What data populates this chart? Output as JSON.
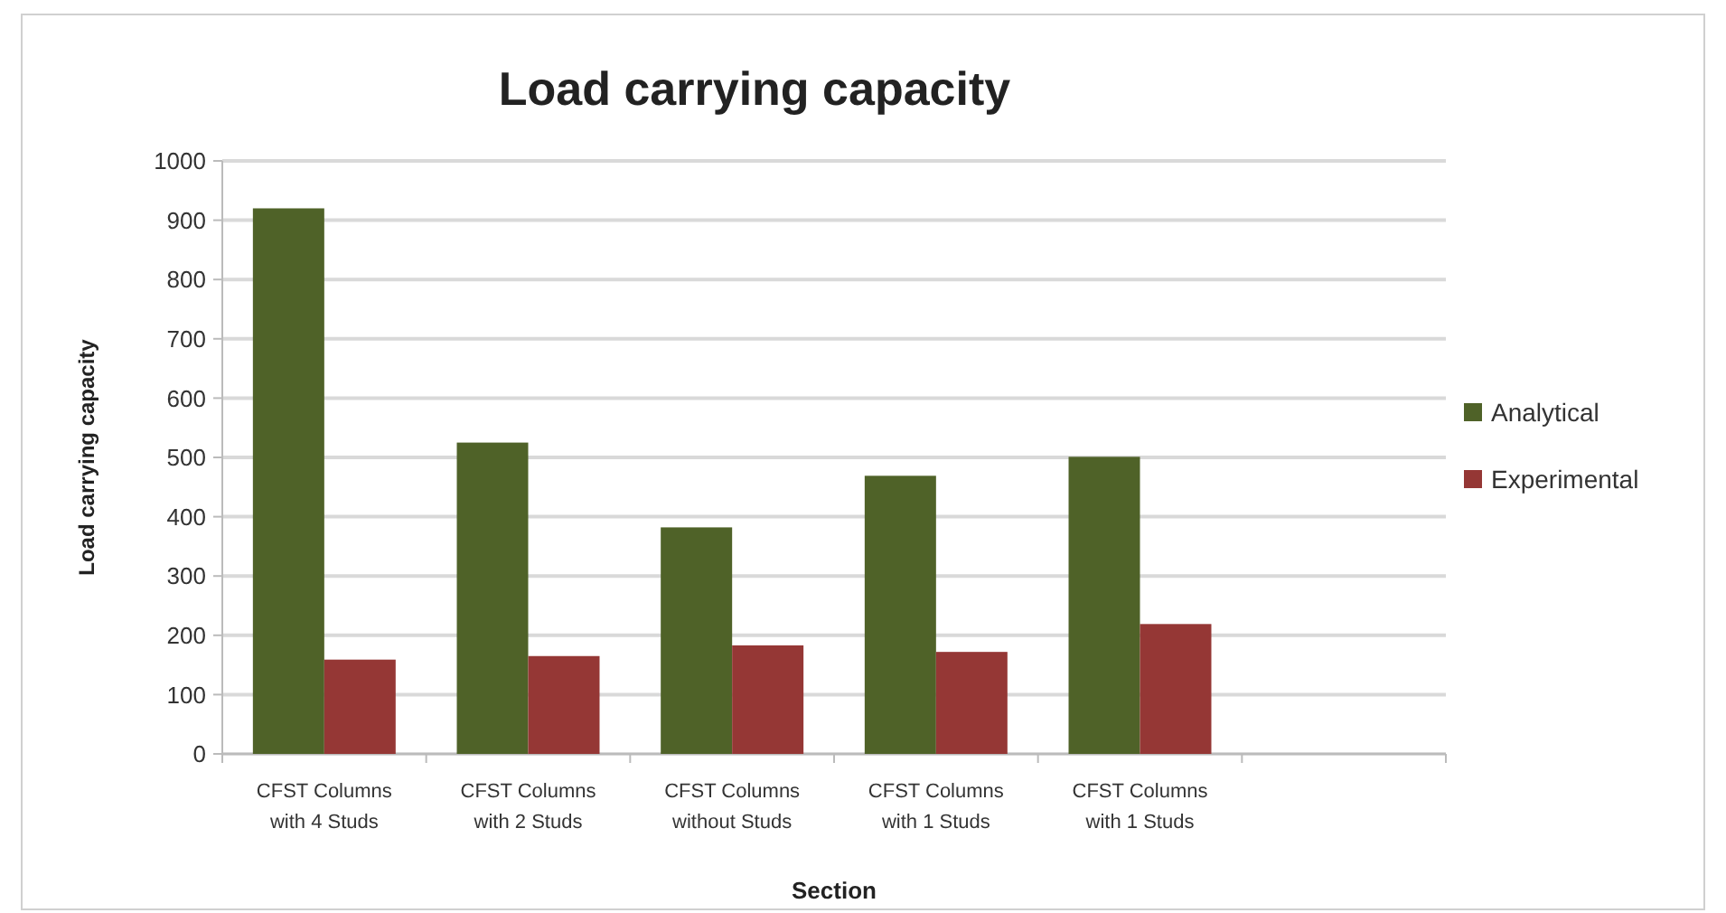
{
  "chart_data": {
    "type": "bar",
    "title": "Load carrying capacity",
    "xlabel": "Section",
    "ylabel": "Load carrying capacity",
    "categories": [
      "CFST Columns with 4 Studs",
      "CFST Columns with 2 Studs",
      "CFST Columns without Studs",
      "CFST Columns with 1 Studs",
      "CFST Columns with 1 Studs",
      null
    ],
    "series": [
      {
        "name": "Analytical",
        "color": "#4f6228",
        "values": [
          920,
          525,
          382,
          469,
          501,
          null
        ]
      },
      {
        "name": "Experimental",
        "color": "#953735",
        "values": [
          159,
          165,
          183,
          172,
          219,
          null
        ]
      }
    ],
    "ylim": [
      0,
      1000
    ],
    "yticks": [
      0,
      100,
      200,
      300,
      400,
      500,
      600,
      700,
      800,
      900,
      1000
    ],
    "grid": "y",
    "legend": "right"
  }
}
